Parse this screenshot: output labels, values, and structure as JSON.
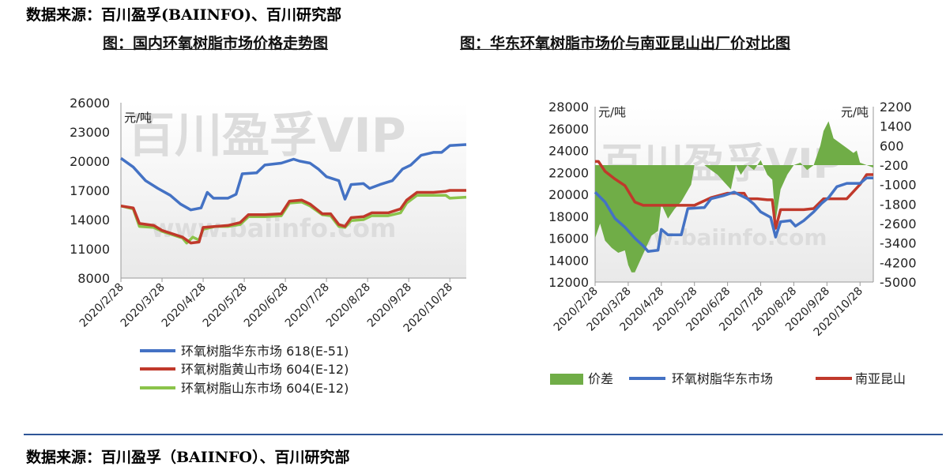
{
  "source_top": "数据来源：百川盈孚(BAIINFO)、百川研究部",
  "source_bottom": "数据来源：百川盈孚（BAIINFO）、百川研究部",
  "watermark": {
    "brand": "百川盈孚VIP",
    "url": "www.baiinfo.com"
  },
  "colors": {
    "blue": "#4472c4",
    "red": "#c0392b",
    "green": "#8bc34a",
    "fill": "#70ad47",
    "divider": "#2f5597"
  },
  "chart_data": [
    {
      "type": "line",
      "title": "图：国内环氧树脂市场价格走势图",
      "ylabel": "元/吨",
      "ylim": [
        8000,
        26000
      ],
      "yticks": [
        8000,
        11000,
        14000,
        17000,
        20000,
        23000,
        26000
      ],
      "x_tick_labels": [
        "2020/2/28",
        "2020/3/28",
        "2020/4/28",
        "2020/5/28",
        "2020/6/28",
        "2020/7/28",
        "2020/8/28",
        "2020/9/28",
        "2020/10/28"
      ],
      "xlim": [
        0,
        8.4
      ],
      "legend_position": "bottom",
      "series": [
        {
          "name": "环氧树脂华东市场  618(E-51)",
          "color": "#4472c4",
          "points": [
            [
              0,
              20300
            ],
            [
              0.3,
              19400
            ],
            [
              0.6,
              18000
            ],
            [
              0.9,
              17200
            ],
            [
              1.2,
              16500
            ],
            [
              1.45,
              15600
            ],
            [
              1.7,
              15000
            ],
            [
              1.95,
              15200
            ],
            [
              2.1,
              16800
            ],
            [
              2.25,
              16200
            ],
            [
              2.6,
              16200
            ],
            [
              2.8,
              16600
            ],
            [
              2.95,
              18700
            ],
            [
              3.3,
              18800
            ],
            [
              3.5,
              19600
            ],
            [
              3.9,
              19800
            ],
            [
              4.2,
              20200
            ],
            [
              4.35,
              20000
            ],
            [
              4.6,
              19800
            ],
            [
              4.8,
              19200
            ],
            [
              5.0,
              18400
            ],
            [
              5.3,
              18000
            ],
            [
              5.45,
              16100
            ],
            [
              5.6,
              17600
            ],
            [
              5.9,
              17700
            ],
            [
              6.05,
              17200
            ],
            [
              6.3,
              17600
            ],
            [
              6.6,
              18000
            ],
            [
              6.85,
              19200
            ],
            [
              7.05,
              19600
            ],
            [
              7.3,
              20600
            ],
            [
              7.6,
              20900
            ],
            [
              7.8,
              20900
            ],
            [
              8.0,
              21600
            ],
            [
              8.4,
              21700
            ]
          ]
        },
        {
          "name": "环氧树脂黄山市场  604(E-12)",
          "color": "#c0392b",
          "points": [
            [
              0,
              15400
            ],
            [
              0.3,
              15200
            ],
            [
              0.45,
              13600
            ],
            [
              0.8,
              13400
            ],
            [
              1.0,
              12900
            ],
            [
              1.5,
              12200
            ],
            [
              1.7,
              11600
            ],
            [
              1.9,
              11700
            ],
            [
              2.0,
              13200
            ],
            [
              2.3,
              13300
            ],
            [
              2.6,
              13400
            ],
            [
              2.9,
              13700
            ],
            [
              3.1,
              14500
            ],
            [
              3.5,
              14500
            ],
            [
              3.9,
              14600
            ],
            [
              4.1,
              15900
            ],
            [
              4.4,
              16000
            ],
            [
              4.6,
              15600
            ],
            [
              4.9,
              14600
            ],
            [
              5.1,
              14600
            ],
            [
              5.3,
              13500
            ],
            [
              5.45,
              13300
            ],
            [
              5.6,
              14200
            ],
            [
              5.9,
              14300
            ],
            [
              6.1,
              14700
            ],
            [
              6.5,
              14700
            ],
            [
              6.8,
              15100
            ],
            [
              6.95,
              16000
            ],
            [
              7.2,
              16800
            ],
            [
              7.6,
              16800
            ],
            [
              7.9,
              16900
            ],
            [
              8.0,
              17000
            ],
            [
              8.4,
              17000
            ]
          ]
        },
        {
          "name": "环氧树脂山东市场  604(E-12)",
          "color": "#8bc34a",
          "points": [
            [
              0,
              15400
            ],
            [
              0.3,
              15100
            ],
            [
              0.45,
              13300
            ],
            [
              0.8,
              13200
            ],
            [
              1.0,
              12800
            ],
            [
              1.5,
              12100
            ],
            [
              1.6,
              11600
            ],
            [
              1.75,
              12200
            ],
            [
              1.9,
              11900
            ],
            [
              2.0,
              13000
            ],
            [
              2.3,
              13300
            ],
            [
              2.6,
              13300
            ],
            [
              2.9,
              13500
            ],
            [
              3.1,
              14300
            ],
            [
              3.5,
              14300
            ],
            [
              3.9,
              14400
            ],
            [
              4.1,
              15700
            ],
            [
              4.4,
              15800
            ],
            [
              4.6,
              15400
            ],
            [
              4.9,
              14500
            ],
            [
              5.1,
              14400
            ],
            [
              5.3,
              13300
            ],
            [
              5.45,
              13200
            ],
            [
              5.6,
              13900
            ],
            [
              5.9,
              14000
            ],
            [
              6.1,
              14400
            ],
            [
              6.5,
              14400
            ],
            [
              6.8,
              14700
            ],
            [
              6.95,
              15700
            ],
            [
              7.2,
              16500
            ],
            [
              7.6,
              16500
            ],
            [
              7.9,
              16500
            ],
            [
              8.0,
              16200
            ],
            [
              8.4,
              16300
            ]
          ]
        }
      ]
    },
    {
      "type": "line",
      "title": "图：华东环氧树脂市场价与南亚昆山出厂价对比图",
      "ylabel": "元/吨",
      "ylabel_right": "元/吨",
      "ylim": [
        12000,
        28000
      ],
      "yticks": [
        12000,
        14000,
        16000,
        18000,
        20000,
        22000,
        24000,
        26000,
        28000
      ],
      "y2lim": [
        -5000,
        2200
      ],
      "y2ticks": [
        -5000,
        -4200,
        -3400,
        -2600,
        -1800,
        -1000,
        -200,
        600,
        1400,
        2200
      ],
      "x_tick_labels": [
        "2020/2/28",
        "2020/3/28",
        "2020/4/28",
        "2020/5/28",
        "2020/6/28",
        "2020/7/28",
        "2020/8/28",
        "2020/9/28",
        "2020/10/28"
      ],
      "xlim": [
        0,
        8.4
      ],
      "legend_position": "bottom",
      "series": [
        {
          "name": "价差",
          "type": "area",
          "axis": "right",
          "color": "#70ad47",
          "points": [
            [
              0,
              -3200
            ],
            [
              0.15,
              -2600
            ],
            [
              0.3,
              -3300
            ],
            [
              0.5,
              -3600
            ],
            [
              0.7,
              -3800
            ],
            [
              0.9,
              -3700
            ],
            [
              1.0,
              -4300
            ],
            [
              1.1,
              -4600
            ],
            [
              1.2,
              -4600
            ],
            [
              1.3,
              -4300
            ],
            [
              1.5,
              -3700
            ],
            [
              1.7,
              -3100
            ],
            [
              1.9,
              -2900
            ],
            [
              2.0,
              -1800
            ],
            [
              2.2,
              -2400
            ],
            [
              2.4,
              -2000
            ],
            [
              2.6,
              -1700
            ],
            [
              2.9,
              -1000
            ],
            [
              3.0,
              -200
            ],
            [
              3.3,
              -200
            ],
            [
              3.5,
              -400
            ],
            [
              3.7,
              -600
            ],
            [
              3.9,
              -900
            ],
            [
              4.1,
              -1200
            ],
            [
              4.25,
              -200
            ],
            [
              4.4,
              -600
            ],
            [
              4.6,
              -200
            ],
            [
              4.8,
              -400
            ],
            [
              4.9,
              -200
            ],
            [
              5.0,
              0
            ],
            [
              5.2,
              -600
            ],
            [
              5.35,
              -800
            ],
            [
              5.45,
              -2500
            ],
            [
              5.6,
              -1200
            ],
            [
              5.8,
              -600
            ],
            [
              6.0,
              -200
            ],
            [
              6.2,
              -100
            ],
            [
              6.4,
              -400
            ],
            [
              6.6,
              -200
            ],
            [
              6.8,
              600
            ],
            [
              6.9,
              1200
            ],
            [
              7.05,
              1600
            ],
            [
              7.2,
              900
            ],
            [
              7.4,
              700
            ],
            [
              7.6,
              500
            ],
            [
              7.8,
              300
            ],
            [
              7.9,
              400
            ],
            [
              8.0,
              -100
            ],
            [
              8.2,
              -200
            ],
            [
              8.4,
              -300
            ]
          ]
        },
        {
          "name": "环氧树脂华东市场",
          "color": "#4472c4",
          "points": [
            [
              0,
              20200
            ],
            [
              0.3,
              19300
            ],
            [
              0.6,
              17800
            ],
            [
              0.9,
              17000
            ],
            [
              1.2,
              16000
            ],
            [
              1.45,
              15300
            ],
            [
              1.6,
              14800
            ],
            [
              1.9,
              14900
            ],
            [
              2.0,
              16800
            ],
            [
              2.2,
              16300
            ],
            [
              2.6,
              16300
            ],
            [
              2.8,
              18700
            ],
            [
              3.3,
              18800
            ],
            [
              3.5,
              19600
            ],
            [
              3.9,
              19900
            ],
            [
              4.2,
              20200
            ],
            [
              4.4,
              19900
            ],
            [
              4.6,
              19600
            ],
            [
              4.8,
              19100
            ],
            [
              5.0,
              18400
            ],
            [
              5.3,
              17900
            ],
            [
              5.45,
              16100
            ],
            [
              5.6,
              17500
            ],
            [
              5.9,
              17600
            ],
            [
              6.05,
              17100
            ],
            [
              6.3,
              17600
            ],
            [
              6.6,
              18400
            ],
            [
              6.85,
              19200
            ],
            [
              7.05,
              19700
            ],
            [
              7.3,
              20700
            ],
            [
              7.6,
              21000
            ],
            [
              8.0,
              21000
            ],
            [
              8.2,
              21500
            ],
            [
              8.4,
              21500
            ]
          ]
        },
        {
          "name": "南亚昆山",
          "color": "#c0392b",
          "points": [
            [
              0,
              23000
            ],
            [
              0.1,
              23000
            ],
            [
              0.3,
              22100
            ],
            [
              0.6,
              21400
            ],
            [
              0.9,
              20800
            ],
            [
              1.2,
              19300
            ],
            [
              1.45,
              19000
            ],
            [
              2.0,
              19000
            ],
            [
              2.4,
              19000
            ],
            [
              3.0,
              19000
            ],
            [
              3.5,
              19700
            ],
            [
              4.0,
              20100
            ],
            [
              4.5,
              20100
            ],
            [
              4.6,
              19600
            ],
            [
              4.9,
              19600
            ],
            [
              5.2,
              19500
            ],
            [
              5.35,
              19500
            ],
            [
              5.45,
              16900
            ],
            [
              5.6,
              18600
            ],
            [
              6.0,
              18600
            ],
            [
              6.3,
              18600
            ],
            [
              6.6,
              18700
            ],
            [
              6.9,
              19600
            ],
            [
              7.3,
              19600
            ],
            [
              7.6,
              19600
            ],
            [
              8.0,
              20900
            ],
            [
              8.2,
              21800
            ],
            [
              8.4,
              21800
            ]
          ]
        }
      ]
    }
  ]
}
